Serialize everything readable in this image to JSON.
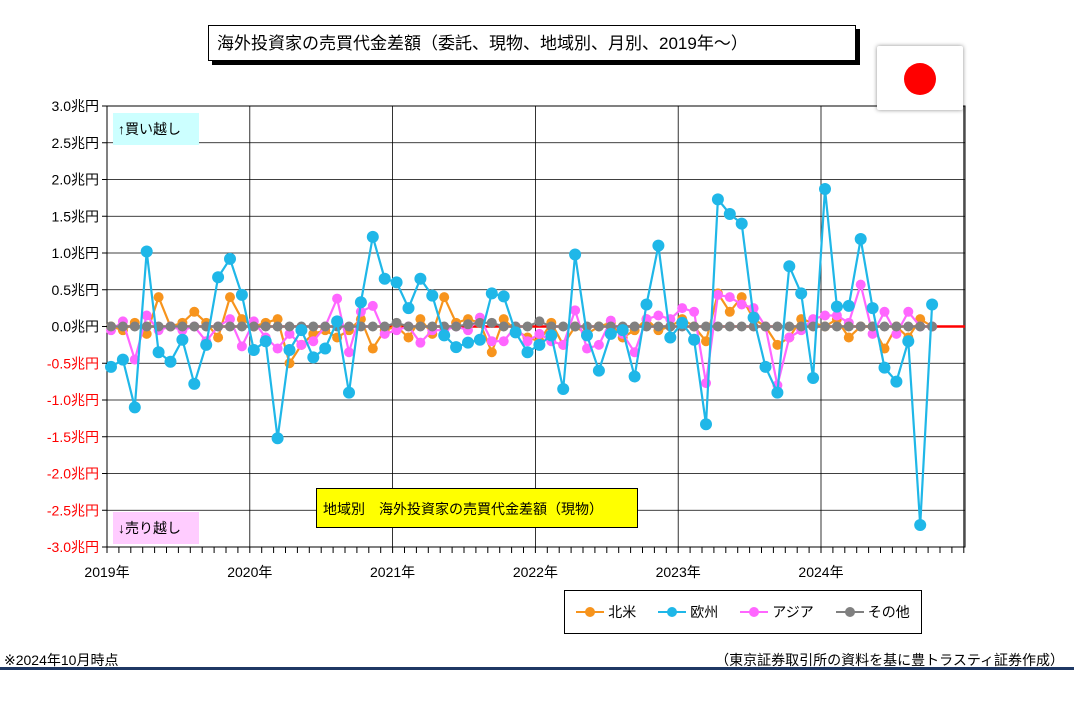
{
  "header": {
    "title": "海外投資家の売買代金差額（委託、現物、地域別、月別、2019年～）"
  },
  "flag": {
    "name": "japan-flag",
    "color": "#ff0000"
  },
  "annotations": {
    "buy": "↑買い越し",
    "sell": "↓売り越し",
    "inner_title": "地域別　海外投資家の売買代金差額（現物）"
  },
  "footer": {
    "left": "※2024年10月時点",
    "right": "（東京証券取引所の資料を基に豊トラスティ証券作成）"
  },
  "legend": [
    {
      "name": "北米",
      "color": "#f7941d"
    },
    {
      "name": "欧州",
      "color": "#1fb7e8"
    },
    {
      "name": "アジア",
      "color": "#ff66ff"
    },
    {
      "name": "その他",
      "color": "#808080"
    }
  ],
  "chart_data": {
    "type": "line",
    "y_tick_labels": [
      "3.0兆円",
      "2.5兆円",
      "2.0兆円",
      "1.5兆円",
      "1.0兆円",
      "0.5兆円",
      "0.0兆円",
      "-0.5兆円",
      "-1.0兆円",
      "-1.5兆円",
      "-2.0兆円",
      "-2.5兆円",
      "-3.0兆円"
    ],
    "x_tick_labels": [
      "2019年",
      "2020年",
      "2021年",
      "2022年",
      "2023年",
      "2024年"
    ],
    "ylim": [
      -3.0,
      3.0
    ],
    "y_step": 0.5,
    "months": 70,
    "grid": true,
    "zero_line_color": "#ff0000",
    "series": [
      {
        "name": "北米",
        "color": "#f7941d",
        "values": [
          0.0,
          -0.05,
          0.05,
          -0.1,
          0.4,
          0.0,
          0.05,
          0.2,
          0.05,
          -0.15,
          0.4,
          0.1,
          0.0,
          0.05,
          0.1,
          -0.5,
          -0.25,
          -0.1,
          -0.05,
          -0.15,
          -0.05,
          0.1,
          -0.3,
          -0.05,
          0.0,
          -0.15,
          0.1,
          -0.1,
          0.4,
          0.05,
          0.1,
          0.05,
          -0.35,
          0.1,
          -0.05,
          -0.15,
          -0.2,
          0.05,
          -0.25,
          0.0,
          -0.1,
          0.0,
          0.05,
          -0.15,
          -0.05,
          0.1,
          -0.05,
          0.0,
          0.1,
          0.0,
          -0.2,
          0.45,
          0.2,
          0.4,
          0.1,
          0.0,
          -0.25,
          -0.15,
          0.1,
          0.05,
          0.0,
          0.1,
          -0.15,
          0.0,
          0.0,
          -0.3,
          0.0,
          -0.15,
          0.1,
          0.0
        ]
      },
      {
        "name": "欧州",
        "color": "#1fb7e8",
        "values": [
          -0.55,
          -0.45,
          -1.1,
          1.02,
          -0.35,
          -0.48,
          -0.18,
          -0.78,
          -0.25,
          0.67,
          0.92,
          0.43,
          -0.32,
          -0.2,
          -1.52,
          -0.32,
          -0.05,
          -0.42,
          -0.3,
          0.07,
          -0.9,
          0.33,
          1.22,
          0.65,
          0.6,
          0.25,
          0.65,
          0.42,
          -0.12,
          -0.28,
          -0.22,
          -0.18,
          0.45,
          0.41,
          -0.08,
          -0.35,
          -0.25,
          -0.12,
          -0.85,
          0.98,
          -0.12,
          -0.6,
          -0.1,
          -0.05,
          -0.68,
          0.3,
          1.1,
          -0.15,
          0.05,
          -0.18,
          -1.33,
          1.73,
          1.53,
          1.4,
          0.12,
          -0.55,
          -0.9,
          0.82,
          0.45,
          -0.7,
          1.87,
          0.27,
          0.28,
          1.19,
          0.25,
          -0.56,
          -0.75,
          -0.2,
          -2.7,
          0.3
        ]
      },
      {
        "name": "アジア",
        "color": "#ff66ff",
        "values": [
          -0.05,
          0.07,
          -0.45,
          0.15,
          -0.05,
          0.0,
          -0.05,
          0.0,
          -0.2,
          0.0,
          0.1,
          -0.27,
          0.07,
          -0.15,
          -0.3,
          -0.1,
          -0.25,
          -0.2,
          0.0,
          0.38,
          -0.35,
          0.2,
          0.28,
          -0.1,
          -0.05,
          0.0,
          -0.22,
          -0.05,
          -0.05,
          0.0,
          -0.05,
          0.12,
          -0.2,
          -0.2,
          0.0,
          -0.2,
          -0.1,
          -0.2,
          -0.25,
          0.22,
          -0.3,
          -0.25,
          0.08,
          -0.1,
          -0.35,
          0.1,
          0.15,
          0.1,
          0.25,
          0.2,
          -0.77,
          0.43,
          0.4,
          0.3,
          0.25,
          0.0,
          -0.8,
          -0.15,
          -0.05,
          0.1,
          0.15,
          0.15,
          0.05,
          0.57,
          -0.1,
          0.2,
          -0.1,
          0.2,
          0.0,
          0.0
        ]
      },
      {
        "name": "その他",
        "color": "#808080",
        "values": [
          0.0,
          0.0,
          0.0,
          0.0,
          0.0,
          0.0,
          0.0,
          0.0,
          0.0,
          0.0,
          0.0,
          0.0,
          0.0,
          0.0,
          0.0,
          0.0,
          0.0,
          0.0,
          0.0,
          0.0,
          0.0,
          0.0,
          0.0,
          0.0,
          0.05,
          0.0,
          0.0,
          0.0,
          0.0,
          0.0,
          0.03,
          0.05,
          0.05,
          0.0,
          0.0,
          0.0,
          0.07,
          0.0,
          0.0,
          0.0,
          0.0,
          0.0,
          0.0,
          0.0,
          0.0,
          0.0,
          0.0,
          0.0,
          0.0,
          0.0,
          0.0,
          0.0,
          0.0,
          0.0,
          0.0,
          0.0,
          0.0,
          0.0,
          0.0,
          0.0,
          0.0,
          0.0,
          0.0,
          0.0,
          0.0,
          0.0,
          0.0,
          0.0,
          0.0,
          0.0
        ]
      }
    ]
  }
}
